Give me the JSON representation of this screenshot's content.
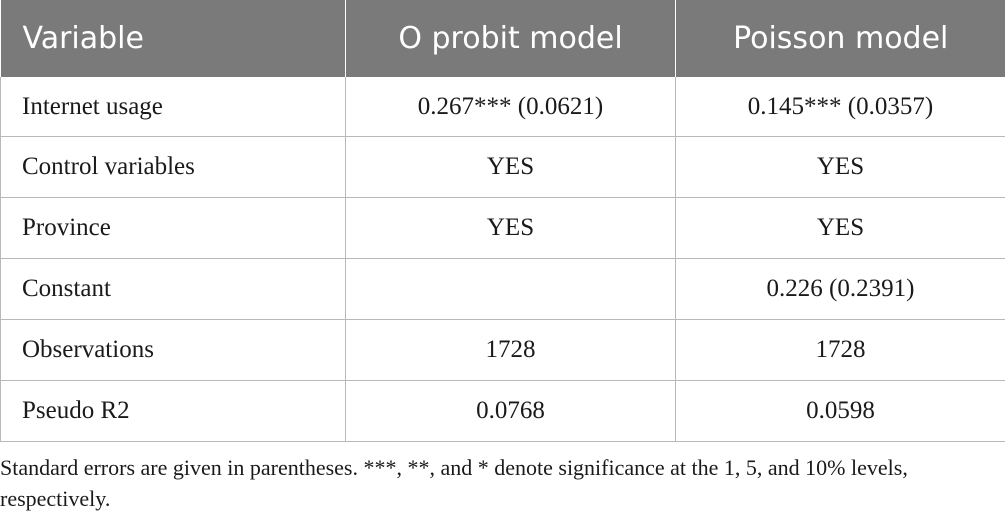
{
  "table": {
    "headers": [
      "Variable",
      "O probit model",
      "Poisson model"
    ],
    "rows": [
      [
        "Internet usage",
        "0.267*** (0.0621)",
        "0.145*** (0.0357)"
      ],
      [
        "Control variables",
        "YES",
        "YES"
      ],
      [
        "Province",
        "YES",
        "YES"
      ],
      [
        "Constant",
        "",
        "0.226 (0.2391)"
      ],
      [
        "Observations",
        "1728",
        "1728"
      ],
      [
        "Pseudo R2",
        "0.0768",
        "0.0598"
      ]
    ]
  },
  "footnote": "Standard errors are given in parentheses. ***, **, and * denote significance at the 1, 5, and 10% levels, respectively."
}
